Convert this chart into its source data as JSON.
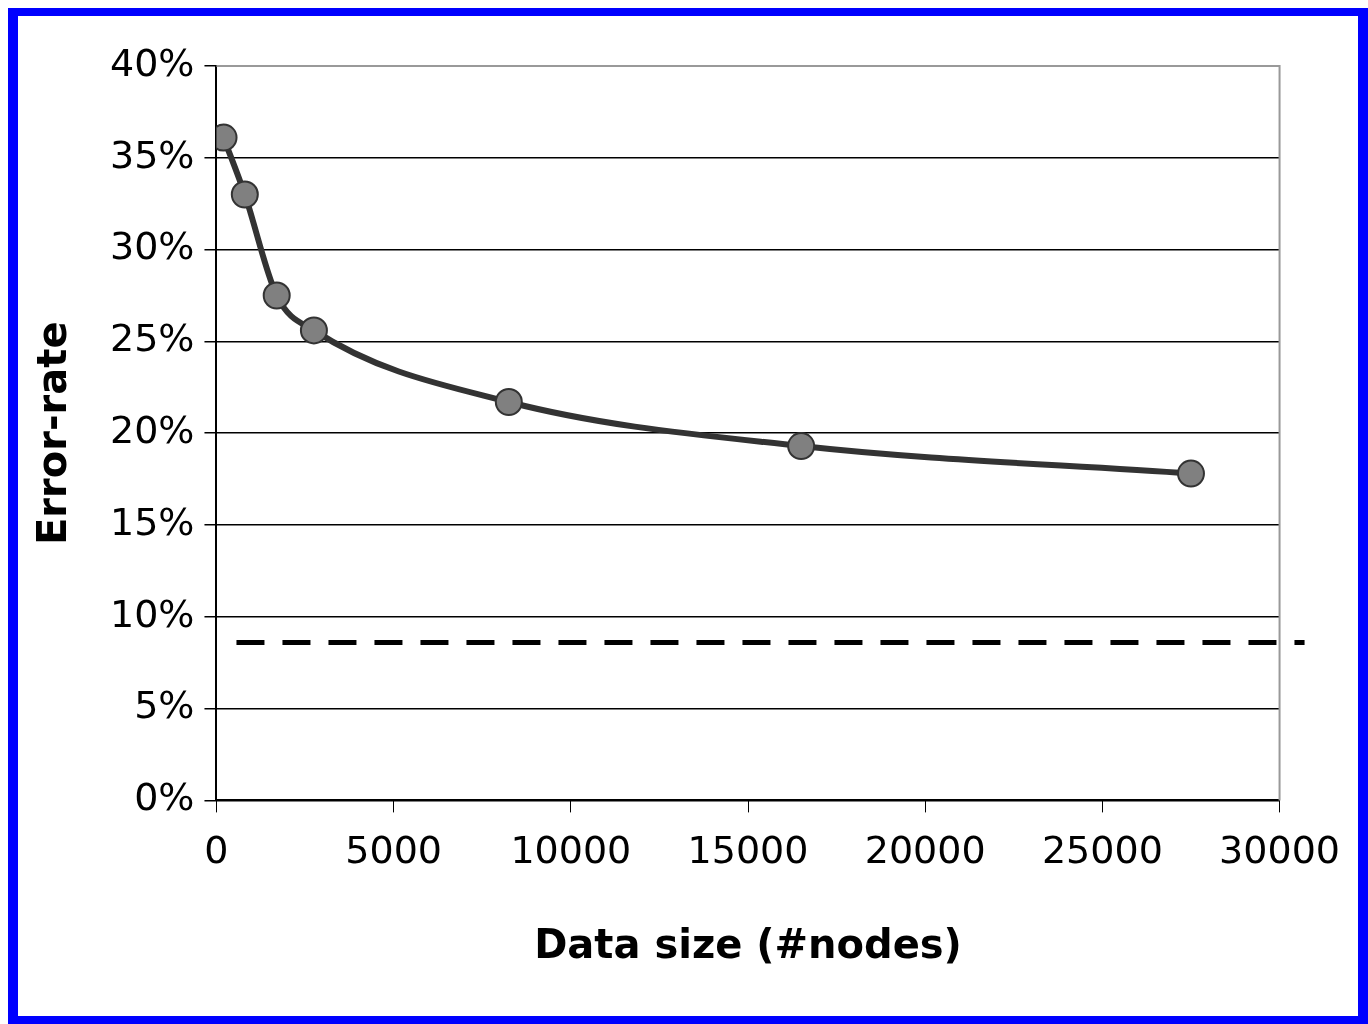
{
  "chart_data": {
    "type": "line",
    "xlabel": "Data size (#nodes)",
    "ylabel": "Error-rate",
    "x": [
      200,
      800,
      1700,
      2750,
      8250,
      16500,
      27500
    ],
    "series": [
      {
        "color": "#808080",
        "values": [
          36.1,
          33.0,
          27.5,
          25.6,
          21.7,
          19.3,
          17.8
        ]
      }
    ],
    "xlim": [
      0,
      30000
    ],
    "xticks": [
      0,
      5000,
      10000,
      15000,
      20000,
      25000,
      30000
    ],
    "ylim": [
      0,
      40
    ],
    "yticks": [
      {
        "value": 0,
        "label": "0%"
      },
      {
        "value": 5,
        "label": "5%"
      },
      {
        "value": 10,
        "label": "10%"
      },
      {
        "value": 15,
        "label": "15%"
      },
      {
        "value": 20,
        "label": "20%"
      },
      {
        "value": 25,
        "label": "25%"
      },
      {
        "value": 30,
        "label": "30%"
      },
      {
        "value": 35,
        "label": "35%"
      },
      {
        "value": 40,
        "label": "40%"
      }
    ],
    "ref_lines": [
      {
        "axis": "y",
        "value": 8.6,
        "color": "#000000",
        "line_style": "dashed"
      }
    ],
    "grid": "y",
    "marker": "circle",
    "line_style": "solid",
    "legend": false
  }
}
